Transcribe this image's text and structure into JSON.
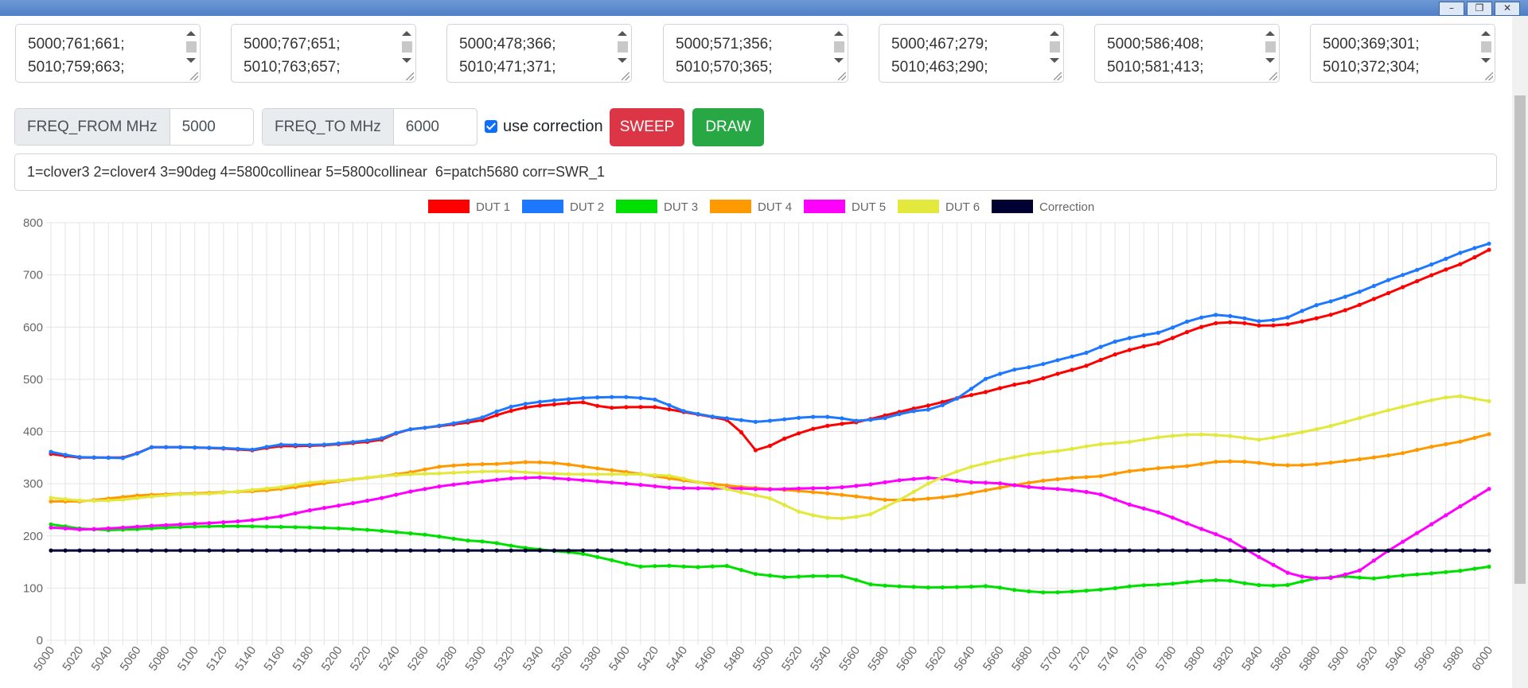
{
  "window": {
    "minimize_icon": "–",
    "restore_icon": "❐",
    "close_icon": "✕"
  },
  "textareas": [
    {
      "value": "5000;761;661;\n5010;759;663;"
    },
    {
      "value": "5000;767;651;\n5010;763;657;"
    },
    {
      "value": "5000;478;366;\n5010;471;371;"
    },
    {
      "value": "5000;571;356;\n5010;570;365;"
    },
    {
      "value": "5000;467;279;\n5010;463;290;"
    },
    {
      "value": "5000;586;408;\n5010;581;413;"
    },
    {
      "value": "5000;369;301;\n5010;372;304;"
    }
  ],
  "controls": {
    "freq_from_label": "FREQ_FROM MHz",
    "freq_from_value": "5000",
    "freq_to_label": "FREQ_TO MHz",
    "freq_to_value": "6000",
    "use_correction_label": "use correction",
    "use_correction_checked": true,
    "sweep_label": "SWEEP",
    "draw_label": "DRAW",
    "description": "1=clover3 2=clover4 3=90deg 4=5800collinear 5=5800collinear  6=patch5680 corr=SWR_1"
  },
  "chart_data": {
    "type": "line",
    "xlim": [
      5000,
      6000
    ],
    "ylim": [
      0,
      800
    ],
    "yticks": [
      0,
      100,
      200,
      300,
      400,
      500,
      600,
      700,
      800
    ],
    "xtick_step": 20,
    "grid": true,
    "legend_position": "top",
    "x_anchor_step": 20,
    "series": [
      {
        "name": "DUT 1",
        "color": "#ff0000",
        "values": [
          357,
          350,
          350,
          350,
          370,
          370,
          369,
          367,
          364,
          372,
          372,
          374,
          378,
          382,
          403,
          408,
          414,
          420,
          437,
          448,
          452,
          457,
          445,
          447,
          447,
          438,
          430,
          420,
          360,
          385,
          403,
          413,
          418,
          430,
          442,
          452,
          465,
          475,
          488,
          497,
          512,
          525,
          545,
          560,
          570,
          590,
          607,
          610,
          602,
          605,
          615,
          627,
          645,
          665,
          685,
          705,
          723,
          748
        ]
      },
      {
        "name": "DUT 2",
        "color": "#1e78ff",
        "values": [
          361,
          351,
          350,
          349,
          370,
          370,
          369,
          368,
          365,
          375,
          374,
          375,
          380,
          385,
          403,
          408,
          416,
          425,
          445,
          455,
          460,
          464,
          466,
          466,
          461,
          440,
          430,
          424,
          418,
          423,
          428,
          428,
          420,
          425,
          438,
          443,
          465,
          500,
          517,
          525,
          538,
          550,
          570,
          582,
          590,
          610,
          624,
          620,
          610,
          618,
          640,
          653,
          670,
          690,
          707,
          725,
          745,
          760
        ]
      },
      {
        "name": "DUT 3",
        "color": "#00e000",
        "values": [
          222,
          214,
          211,
          213,
          216,
          218,
          219,
          218,
          217,
          216,
          214,
          211,
          206,
          201,
          192,
          188,
          178,
          172,
          167,
          155,
          141,
          143,
          140,
          143,
          127,
          121,
          123,
          123,
          106,
          103,
          101,
          102,
          104,
          95,
          91,
          94,
          98,
          105,
          107,
          113,
          116,
          106,
          104,
          118,
          123,
          118,
          124,
          128,
          133,
          141
        ]
      },
      {
        "name": "DUT 4",
        "color": "#ff9900",
        "values": [
          266,
          266,
          272,
          278,
          280,
          282,
          284,
          286,
          292,
          300,
          308,
          314,
          322,
          333,
          337,
          338,
          342,
          339,
          331,
          324,
          316,
          307,
          300,
          294,
          290,
          286,
          281,
          275,
          268,
          270,
          275,
          285,
          296,
          305,
          311,
          314,
          324,
          330,
          334,
          343,
          342,
          335,
          336,
          342,
          349,
          357,
          370,
          380,
          395
        ]
      },
      {
        "name": "DUT 5",
        "color": "#ff00ff",
        "values": [
          216,
          212,
          215,
          219,
          222,
          225,
          229,
          237,
          250,
          260,
          271,
          285,
          296,
          303,
          310,
          312,
          308,
          303,
          298,
          292,
          291,
          291,
          289,
          291,
          292,
          298,
          307,
          312,
          303,
          301,
          293,
          289,
          282,
          260,
          243,
          218,
          195,
          158,
          124,
          117,
          132,
          175,
          213,
          252,
          290
        ]
      },
      {
        "name": "DUT 6",
        "color": "#e3e83c",
        "values": [
          273,
          267,
          268,
          275,
          280,
          281,
          287,
          293,
          303,
          307,
          314,
          318,
          320,
          323,
          324,
          320,
          318,
          318,
          318,
          315,
          300,
          285,
          272,
          243,
          232,
          239,
          270,
          306,
          330,
          345,
          357,
          364,
          375,
          380,
          390,
          395,
          392,
          384,
          395,
          408,
          425,
          442,
          457,
          469,
          458
        ]
      },
      {
        "name": "Correction",
        "color": "#000033",
        "values": [
          172,
          172
        ]
      }
    ]
  },
  "ytick_labels": [
    "0",
    "100",
    "200",
    "300",
    "400",
    "500",
    "600",
    "700",
    "800"
  ]
}
